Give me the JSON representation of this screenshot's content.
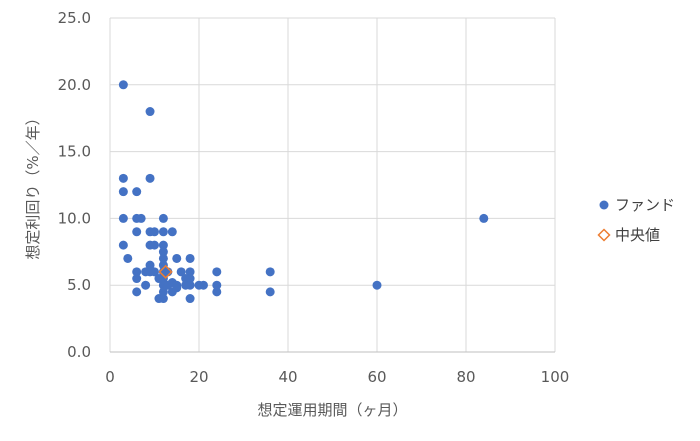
{
  "chart_data": {
    "type": "scatter",
    "title": "",
    "xlabel": "想定運用期間（ヶ月）",
    "ylabel": "想定利回り（%／年）",
    "xlim": [
      0,
      100
    ],
    "ylim": [
      0,
      25
    ],
    "x_ticks": [
      0,
      20,
      40,
      60,
      80,
      100
    ],
    "y_ticks": [
      0,
      5,
      10,
      15,
      20,
      25
    ],
    "x_tick_labels": [
      "0",
      "20",
      "40",
      "60",
      "80",
      "100"
    ],
    "y_tick_labels": [
      "0.0",
      "5.0",
      "10.0",
      "15.0",
      "20.0",
      "25.0"
    ],
    "grid": true,
    "legend_position": "right",
    "series": [
      {
        "name": "ファンド",
        "marker": "circle",
        "color": "#4472C4",
        "points": [
          [
            3,
            20
          ],
          [
            3,
            13
          ],
          [
            3,
            12
          ],
          [
            3,
            10
          ],
          [
            3,
            8
          ],
          [
            4,
            7
          ],
          [
            6,
            12
          ],
          [
            6,
            10
          ],
          [
            6,
            9
          ],
          [
            6,
            6
          ],
          [
            6,
            5.5
          ],
          [
            6,
            4.5
          ],
          [
            7,
            10
          ],
          [
            8,
            6
          ],
          [
            8,
            5
          ],
          [
            9,
            18
          ],
          [
            9,
            13
          ],
          [
            9,
            9
          ],
          [
            9,
            8
          ],
          [
            9,
            6.5
          ],
          [
            9,
            6
          ],
          [
            10,
            9
          ],
          [
            10,
            8
          ],
          [
            10,
            6
          ],
          [
            11,
            5.5
          ],
          [
            11,
            4
          ],
          [
            12,
            10
          ],
          [
            12,
            9
          ],
          [
            12,
            8
          ],
          [
            12,
            7.5
          ],
          [
            12,
            7
          ],
          [
            12,
            6.5
          ],
          [
            12,
            6
          ],
          [
            12,
            5.5
          ],
          [
            12,
            5
          ],
          [
            12,
            4.5
          ],
          [
            12,
            4
          ],
          [
            13,
            6
          ],
          [
            13,
            5
          ],
          [
            14,
            9
          ],
          [
            14,
            5.2
          ],
          [
            14,
            4.5
          ],
          [
            15,
            7
          ],
          [
            15,
            5
          ],
          [
            15,
            4.8
          ],
          [
            16,
            6
          ],
          [
            17,
            5.5
          ],
          [
            17,
            5
          ],
          [
            18,
            7
          ],
          [
            18,
            6
          ],
          [
            18,
            5.5
          ],
          [
            18,
            5
          ],
          [
            18,
            4
          ],
          [
            20,
            5
          ],
          [
            21,
            5
          ],
          [
            24,
            6
          ],
          [
            24,
            5
          ],
          [
            24,
            4.5
          ],
          [
            36,
            6
          ],
          [
            36,
            4.5
          ],
          [
            60,
            5
          ],
          [
            84,
            10
          ]
        ]
      },
      {
        "name": "中央値",
        "marker": "diamond-open",
        "color": "#ED7D31",
        "points": [
          [
            12.5,
            6
          ]
        ]
      }
    ]
  }
}
